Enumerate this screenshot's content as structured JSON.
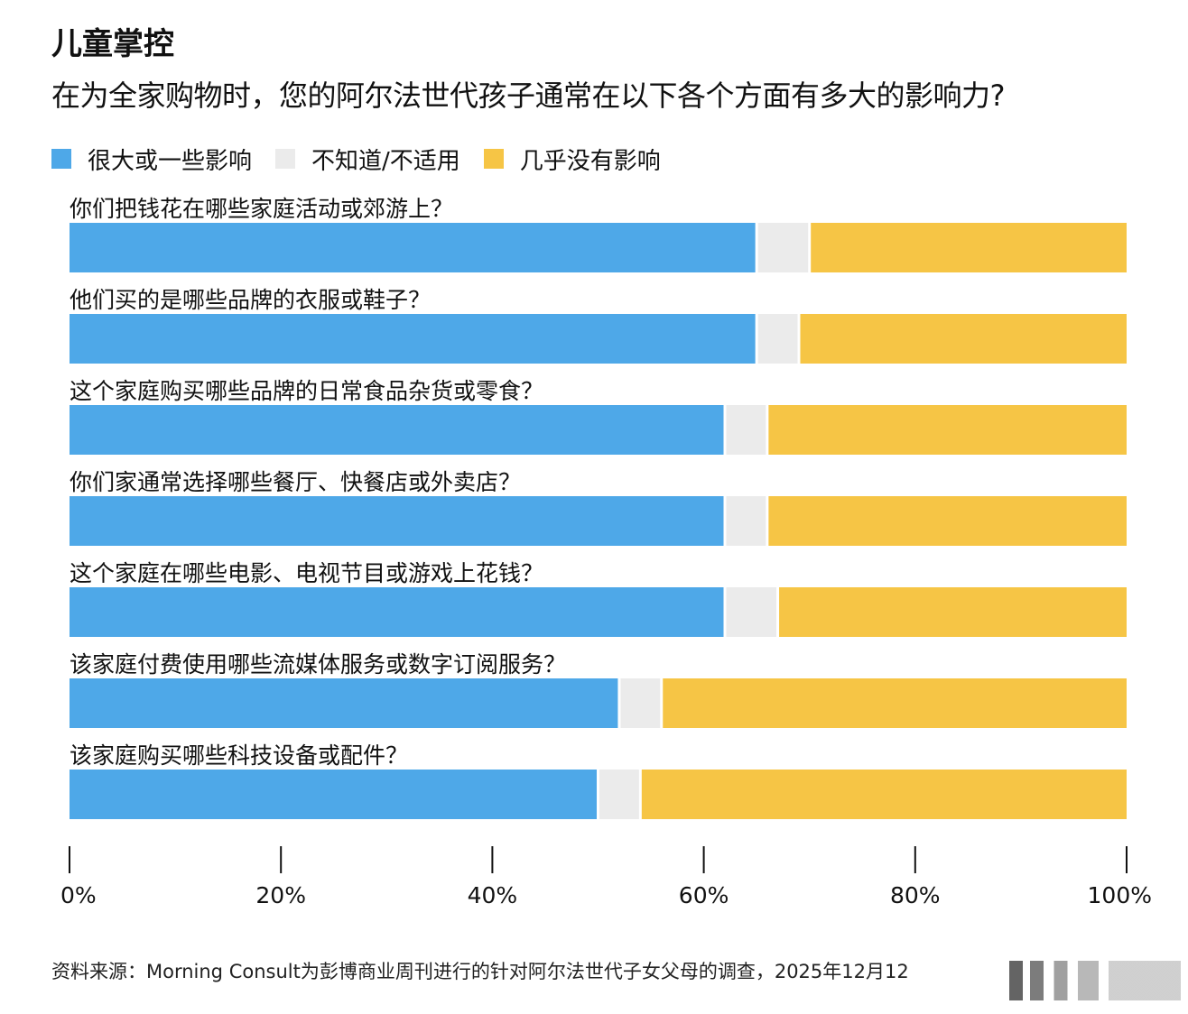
{
  "title": "儿童掌控",
  "subtitle": "在为全家购物时，您的阿尔法世代孩子通常在以下各个方面有多大的影响力?",
  "source": "资料来源：Morning Consult为彭博商业周刊进行的针对阿尔法世代子女父母的调查，2025年12月12",
  "colors": {
    "influence": "#4ea8e8",
    "unknown": "#ebebeb",
    "none": "#f6c545",
    "separator": "#ffffff",
    "axis": "#111111"
  },
  "chart_data": {
    "type": "bar",
    "orientation": "horizontal",
    "stacked": true,
    "title": "儿童掌控",
    "subtitle": "在为全家购物时，您的阿尔法世代孩子通常在以下各个方面有多大的影响力?",
    "xlabel": "",
    "ylabel": "",
    "xlim": [
      0,
      100
    ],
    "x_ticks": [
      0,
      20,
      40,
      60,
      80,
      100
    ],
    "x_tick_labels": [
      "0%",
      "20%",
      "40%",
      "60%",
      "80%",
      "100%"
    ],
    "legend_position": "top-left",
    "categories": [
      "你们把钱花在哪些家庭活动或郊游上？",
      "他们买的是哪些品牌的衣服或鞋子？",
      "这个家庭购买哪些品牌的日常食品杂货或零食？",
      "你们家通常选择哪些餐厅、快餐店或外卖店？",
      "这个家庭在哪些电影、电视节目或游戏上花钱？",
      "该家庭付费使用哪些流媒体服务或数字订阅服务？",
      "该家庭购买哪些科技设备或配件？"
    ],
    "series": [
      {
        "name": "很大或一些影响",
        "color": "#4ea8e8",
        "values": [
          65,
          65,
          62,
          62,
          62,
          52,
          50
        ]
      },
      {
        "name": "不知道/不适用",
        "color": "#ebebeb",
        "values": [
          5,
          4,
          4,
          4,
          5,
          4,
          4
        ]
      },
      {
        "name": "几乎没有影响",
        "color": "#f6c545",
        "values": [
          30,
          31,
          34,
          34,
          33,
          44,
          46
        ]
      }
    ]
  }
}
